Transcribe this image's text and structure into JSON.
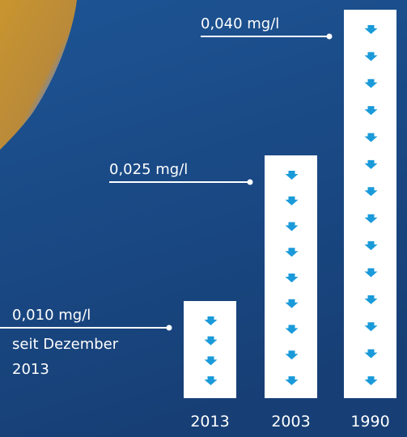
{
  "chart_data": {
    "type": "bar",
    "categories": [
      "2013",
      "2003",
      "1990"
    ],
    "values": [
      0.01,
      0.025,
      0.04
    ],
    "value_labels": [
      "0,010 mg/l",
      "0,025 mg/l",
      "0,040 mg/l"
    ],
    "annotation": [
      "seit Dezember",
      "2013"
    ],
    "color": "#ffffff",
    "arrow_color": "#1a9ad9"
  }
}
